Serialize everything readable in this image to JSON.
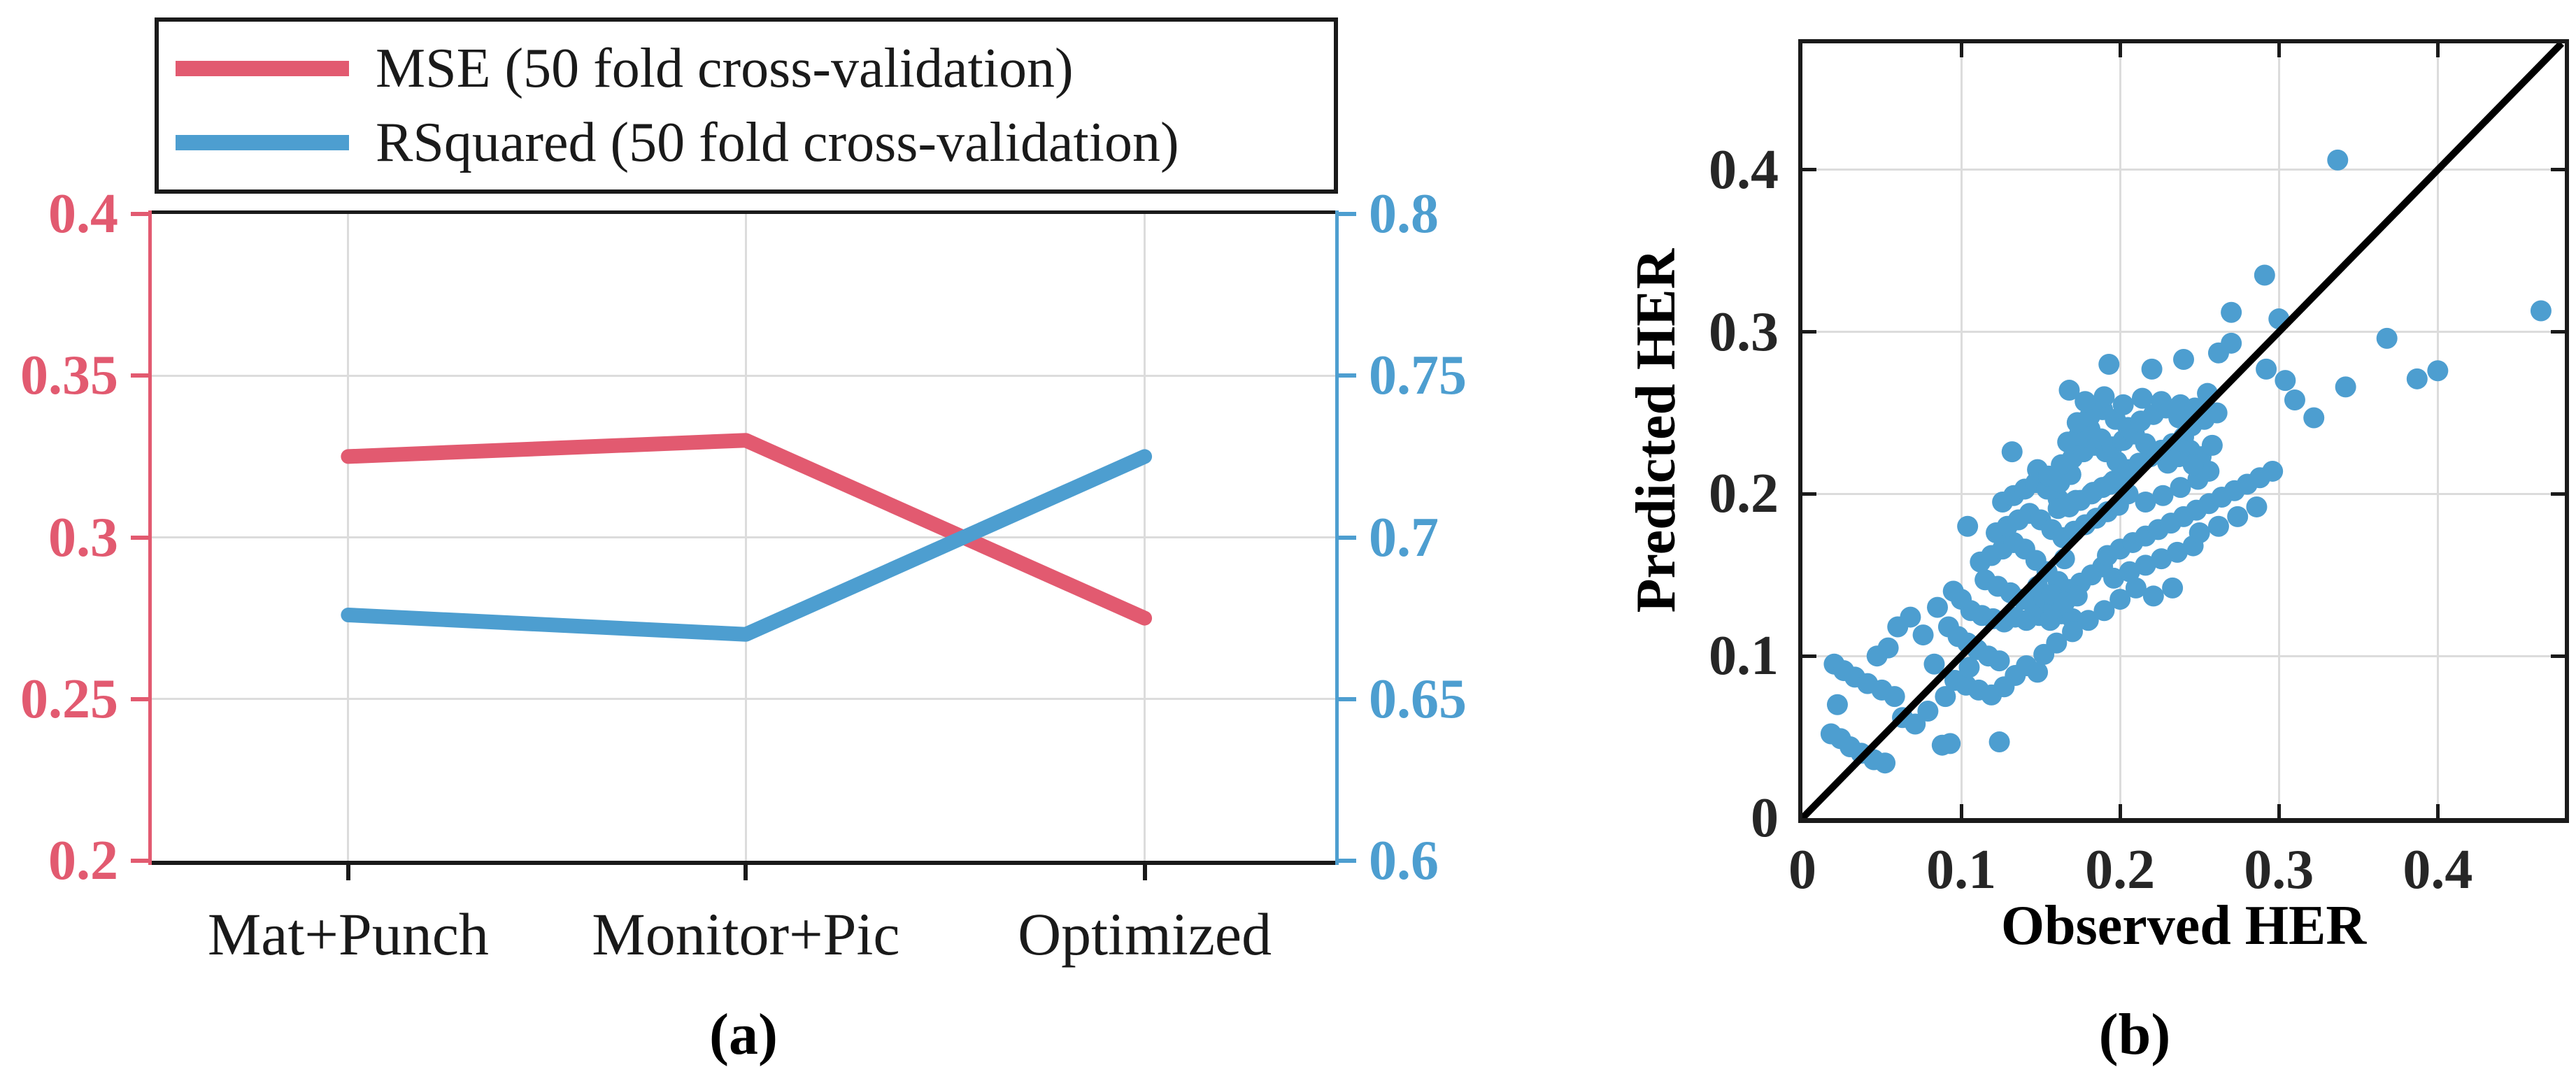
{
  "figure": {
    "caption_a": "(a)",
    "caption_b": "(b)",
    "colors": {
      "mse_pink": "#e25a70",
      "rsquared_blue": "#4d9ed0",
      "scatter_blue": "#4d9ed0",
      "diagonal_black": "#000000",
      "grid_gray": "#dcdcdc",
      "axis_dark": "#1a1a1a",
      "tick_text_dark": "#262626"
    }
  },
  "chart_data": [
    {
      "id": "panel-a",
      "type": "line",
      "categories": [
        "Mat+Punch",
        "Monitor+Pic",
        "Optimized"
      ],
      "series": [
        {
          "name": "MSE (50 fold cross-validation)",
          "axis": "left",
          "color": "#e25a70",
          "values": [
            0.325,
            0.33,
            0.275
          ]
        },
        {
          "name": "RSquared (50 fold cross-validation)",
          "axis": "right",
          "color": "#4d9ed0",
          "values": [
            0.676,
            0.67,
            0.725
          ]
        }
      ],
      "left_axis": {
        "min": 0.2,
        "max": 0.4,
        "tick_values": [
          0.4,
          0.35,
          0.3,
          0.25,
          0.2
        ],
        "tick_labels": [
          "0.4",
          "0.35",
          "0.3",
          "0.25",
          "0.2"
        ]
      },
      "right_axis": {
        "min": 0.6,
        "max": 0.8,
        "tick_values": [
          0.8,
          0.75,
          0.7,
          0.65,
          0.6
        ],
        "tick_labels": [
          "0.8",
          "0.75",
          "0.7",
          "0.65",
          "0.6"
        ]
      },
      "legend_position": "top",
      "grid": true
    },
    {
      "id": "panel-b",
      "type": "scatter",
      "xlabel": "Observed HER",
      "ylabel": "Predicted HER",
      "xlim": [
        0,
        0.48
      ],
      "ylim": [
        0,
        0.478
      ],
      "xtick_values": [
        0,
        0.1,
        0.2,
        0.3,
        0.4
      ],
      "xtick_labels": [
        "0",
        "0.1",
        "0.2",
        "0.3",
        "0.4"
      ],
      "ytick_values": [
        0,
        0.1,
        0.2,
        0.3,
        0.4
      ],
      "ytick_labels": [
        "0",
        "0.1",
        "0.2",
        "0.3",
        "0.4"
      ],
      "grid": true,
      "diagonal": [
        [
          0,
          0
        ],
        [
          0.478,
          0.478
        ]
      ],
      "points": [
        [
          0.018,
          0.052
        ],
        [
          0.024,
          0.049
        ],
        [
          0.03,
          0.044
        ],
        [
          0.037,
          0.04
        ],
        [
          0.045,
          0.036
        ],
        [
          0.052,
          0.034
        ],
        [
          0.02,
          0.095
        ],
        [
          0.026,
          0.091
        ],
        [
          0.033,
          0.087
        ],
        [
          0.041,
          0.083
        ],
        [
          0.05,
          0.079
        ],
        [
          0.058,
          0.075
        ],
        [
          0.022,
          0.07
        ],
        [
          0.047,
          0.1
        ],
        [
          0.054,
          0.105
        ],
        [
          0.063,
          0.062
        ],
        [
          0.071,
          0.058
        ],
        [
          0.079,
          0.066
        ],
        [
          0.06,
          0.118
        ],
        [
          0.068,
          0.124
        ],
        [
          0.076,
          0.113
        ],
        [
          0.088,
          0.045
        ],
        [
          0.09,
          0.075
        ],
        [
          0.083,
          0.095
        ],
        [
          0.092,
          0.118
        ],
        [
          0.098,
          0.112
        ],
        [
          0.104,
          0.108
        ],
        [
          0.11,
          0.104
        ],
        [
          0.117,
          0.1
        ],
        [
          0.124,
          0.097
        ],
        [
          0.096,
          0.085
        ],
        [
          0.103,
          0.082
        ],
        [
          0.111,
          0.079
        ],
        [
          0.119,
          0.076
        ],
        [
          0.127,
          0.081
        ],
        [
          0.134,
          0.088
        ],
        [
          0.124,
          0.047
        ],
        [
          0.141,
          0.094
        ],
        [
          0.148,
          0.09
        ],
        [
          0.093,
          0.046
        ],
        [
          0.106,
          0.128
        ],
        [
          0.1,
          0.135
        ],
        [
          0.113,
          0.125
        ],
        [
          0.12,
          0.123
        ],
        [
          0.127,
          0.121
        ],
        [
          0.134,
          0.124
        ],
        [
          0.141,
          0.122
        ],
        [
          0.149,
          0.125
        ],
        [
          0.156,
          0.122
        ],
        [
          0.163,
          0.126
        ],
        [
          0.17,
          0.123
        ],
        [
          0.146,
          0.131
        ],
        [
          0.152,
          0.136
        ],
        [
          0.158,
          0.129
        ],
        [
          0.112,
          0.158
        ],
        [
          0.119,
          0.162
        ],
        [
          0.126,
          0.166
        ],
        [
          0.133,
          0.17
        ],
        [
          0.14,
          0.166
        ],
        [
          0.147,
          0.159
        ],
        [
          0.154,
          0.152
        ],
        [
          0.161,
          0.146
        ],
        [
          0.168,
          0.141
        ],
        [
          0.175,
          0.145
        ],
        [
          0.182,
          0.15
        ],
        [
          0.189,
          0.155
        ],
        [
          0.115,
          0.147
        ],
        [
          0.123,
          0.143
        ],
        [
          0.131,
          0.139
        ],
        [
          0.139,
          0.135
        ],
        [
          0.148,
          0.143
        ],
        [
          0.157,
          0.138
        ],
        [
          0.165,
          0.133
        ],
        [
          0.173,
          0.137
        ],
        [
          0.122,
          0.176
        ],
        [
          0.129,
          0.18
        ],
        [
          0.136,
          0.184
        ],
        [
          0.143,
          0.188
        ],
        [
          0.15,
          0.184
        ],
        [
          0.157,
          0.178
        ],
        [
          0.164,
          0.173
        ],
        [
          0.171,
          0.177
        ],
        [
          0.178,
          0.181
        ],
        [
          0.185,
          0.185
        ],
        [
          0.192,
          0.189
        ],
        [
          0.199,
          0.193
        ],
        [
          0.126,
          0.195
        ],
        [
          0.133,
          0.199
        ],
        [
          0.14,
          0.203
        ],
        [
          0.147,
          0.207
        ],
        [
          0.154,
          0.203
        ],
        [
          0.161,
          0.197
        ],
        [
          0.168,
          0.192
        ],
        [
          0.175,
          0.196
        ],
        [
          0.182,
          0.2
        ],
        [
          0.189,
          0.204
        ],
        [
          0.196,
          0.208
        ],
        [
          0.203,
          0.212
        ],
        [
          0.148,
          0.215
        ],
        [
          0.155,
          0.211
        ],
        [
          0.162,
          0.207
        ],
        [
          0.169,
          0.212
        ],
        [
          0.163,
          0.218
        ],
        [
          0.17,
          0.222
        ],
        [
          0.177,
          0.226
        ],
        [
          0.184,
          0.23
        ],
        [
          0.191,
          0.226
        ],
        [
          0.198,
          0.22
        ],
        [
          0.205,
          0.215
        ],
        [
          0.212,
          0.219
        ],
        [
          0.219,
          0.223
        ],
        [
          0.226,
          0.227
        ],
        [
          0.233,
          0.231
        ],
        [
          0.24,
          0.235
        ],
        [
          0.167,
          0.232
        ],
        [
          0.174,
          0.236
        ],
        [
          0.181,
          0.24
        ],
        [
          0.188,
          0.234
        ],
        [
          0.195,
          0.229
        ],
        [
          0.202,
          0.233
        ],
        [
          0.209,
          0.237
        ],
        [
          0.216,
          0.231
        ],
        [
          0.223,
          0.225
        ],
        [
          0.23,
          0.219
        ],
        [
          0.237,
          0.223
        ],
        [
          0.244,
          0.227
        ],
        [
          0.161,
          0.191
        ],
        [
          0.172,
          0.196
        ],
        [
          0.183,
          0.201
        ],
        [
          0.194,
          0.206
        ],
        [
          0.205,
          0.2
        ],
        [
          0.216,
          0.195
        ],
        [
          0.227,
          0.199
        ],
        [
          0.238,
          0.204
        ],
        [
          0.249,
          0.209
        ],
        [
          0.256,
          0.214
        ],
        [
          0.251,
          0.223
        ],
        [
          0.246,
          0.218
        ],
        [
          0.192,
          0.162
        ],
        [
          0.2,
          0.166
        ],
        [
          0.208,
          0.17
        ],
        [
          0.216,
          0.174
        ],
        [
          0.224,
          0.178
        ],
        [
          0.232,
          0.182
        ],
        [
          0.24,
          0.186
        ],
        [
          0.248,
          0.19
        ],
        [
          0.256,
          0.194
        ],
        [
          0.264,
          0.198
        ],
        [
          0.272,
          0.202
        ],
        [
          0.28,
          0.206
        ],
        [
          0.196,
          0.148
        ],
        [
          0.206,
          0.152
        ],
        [
          0.216,
          0.156
        ],
        [
          0.226,
          0.16
        ],
        [
          0.236,
          0.164
        ],
        [
          0.246,
          0.168
        ],
        [
          0.221,
          0.137
        ],
        [
          0.233,
          0.142
        ],
        [
          0.288,
          0.21
        ],
        [
          0.296,
          0.214
        ],
        [
          0.173,
          0.244
        ],
        [
          0.181,
          0.248
        ],
        [
          0.189,
          0.252
        ],
        [
          0.197,
          0.246
        ],
        [
          0.205,
          0.241
        ],
        [
          0.213,
          0.245
        ],
        [
          0.221,
          0.249
        ],
        [
          0.229,
          0.253
        ],
        [
          0.237,
          0.247
        ],
        [
          0.245,
          0.242
        ],
        [
          0.253,
          0.246
        ],
        [
          0.261,
          0.25
        ],
        [
          0.178,
          0.257
        ],
        [
          0.19,
          0.26
        ],
        [
          0.202,
          0.255
        ],
        [
          0.214,
          0.259
        ],
        [
          0.226,
          0.257
        ],
        [
          0.238,
          0.255
        ],
        [
          0.337,
          0.406
        ],
        [
          0.465,
          0.313
        ],
        [
          0.291,
          0.335
        ],
        [
          0.27,
          0.312
        ],
        [
          0.3,
          0.308
        ],
        [
          0.368,
          0.296
        ],
        [
          0.4,
          0.276
        ],
        [
          0.387,
          0.271
        ],
        [
          0.342,
          0.266
        ],
        [
          0.304,
          0.27
        ],
        [
          0.292,
          0.277
        ],
        [
          0.262,
          0.287
        ],
        [
          0.24,
          0.283
        ],
        [
          0.22,
          0.277
        ],
        [
          0.193,
          0.28
        ],
        [
          0.168,
          0.264
        ],
        [
          0.27,
          0.293
        ],
        [
          0.255,
          0.262
        ],
        [
          0.132,
          0.226
        ],
        [
          0.104,
          0.18
        ],
        [
          0.31,
          0.258
        ],
        [
          0.322,
          0.247
        ],
        [
          0.258,
          0.23
        ],
        [
          0.247,
          0.253
        ],
        [
          0.085,
          0.13
        ],
        [
          0.095,
          0.14
        ],
        [
          0.105,
          0.093
        ],
        [
          0.152,
          0.101
        ],
        [
          0.16,
          0.108
        ],
        [
          0.17,
          0.115
        ],
        [
          0.18,
          0.122
        ],
        [
          0.19,
          0.128
        ],
        [
          0.2,
          0.135
        ],
        [
          0.21,
          0.142
        ],
        [
          0.165,
          0.16
        ],
        [
          0.25,
          0.176
        ],
        [
          0.262,
          0.18
        ],
        [
          0.274,
          0.186
        ],
        [
          0.286,
          0.192
        ]
      ]
    }
  ]
}
